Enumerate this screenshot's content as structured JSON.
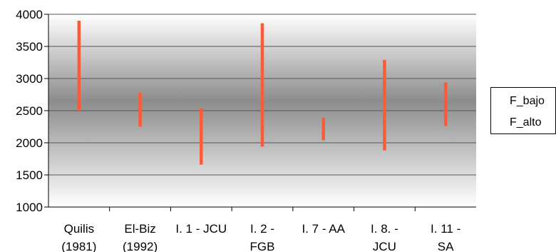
{
  "chart_data": {
    "type": "range_bar",
    "categories": [
      [
        "Quilis",
        "(1981)"
      ],
      [
        "El-Biz",
        "(1992)"
      ],
      [
        "I. 1 - JCU"
      ],
      [
        "I. 2 -",
        "FGB"
      ],
      [
        "I. 7 - AA"
      ],
      [
        "I. 8. -",
        "JCU"
      ],
      [
        "I. 11 -",
        "SA"
      ]
    ],
    "series": [
      {
        "name": "F_bajo",
        "values": [
          2500,
          2250,
          1660,
          1940,
          2040,
          1880,
          2260
        ]
      },
      {
        "name": "F_alto",
        "values": [
          3900,
          2780,
          2530,
          3860,
          2390,
          3290,
          2940
        ]
      }
    ],
    "ylim": [
      1000,
      4000
    ],
    "yticks": [
      1000,
      1500,
      2000,
      2500,
      3000,
      3500,
      4000
    ],
    "grid": true,
    "bar_color": "#ff5a36",
    "legend_position": "right"
  }
}
